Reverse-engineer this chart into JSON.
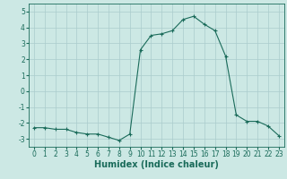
{
  "x": [
    0,
    1,
    2,
    3,
    4,
    5,
    6,
    7,
    8,
    9,
    10,
    11,
    12,
    13,
    14,
    15,
    16,
    17,
    18,
    19,
    20,
    21,
    22,
    23
  ],
  "y": [
    -2.3,
    -2.3,
    -2.4,
    -2.4,
    -2.6,
    -2.7,
    -2.7,
    -2.9,
    -3.1,
    -2.7,
    2.6,
    3.5,
    3.6,
    3.8,
    4.5,
    4.7,
    4.2,
    3.8,
    2.2,
    -1.5,
    -1.9,
    -1.9,
    -2.2,
    -2.8
  ],
  "xlabel": "Humidex (Indice chaleur)",
  "ylim": [
    -3.5,
    5.5
  ],
  "xlim": [
    -0.5,
    23.5
  ],
  "yticks": [
    -3,
    -2,
    -1,
    0,
    1,
    2,
    3,
    4,
    5
  ],
  "xticks": [
    0,
    1,
    2,
    3,
    4,
    5,
    6,
    7,
    8,
    9,
    10,
    11,
    12,
    13,
    14,
    15,
    16,
    17,
    18,
    19,
    20,
    21,
    22,
    23
  ],
  "line_color": "#1a6b5a",
  "marker": "+",
  "marker_size": 3,
  "bg_color": "#cce8e4",
  "grid_color": "#aacccc",
  "tick_label_fontsize": 5.5,
  "xlabel_fontsize": 7.0
}
